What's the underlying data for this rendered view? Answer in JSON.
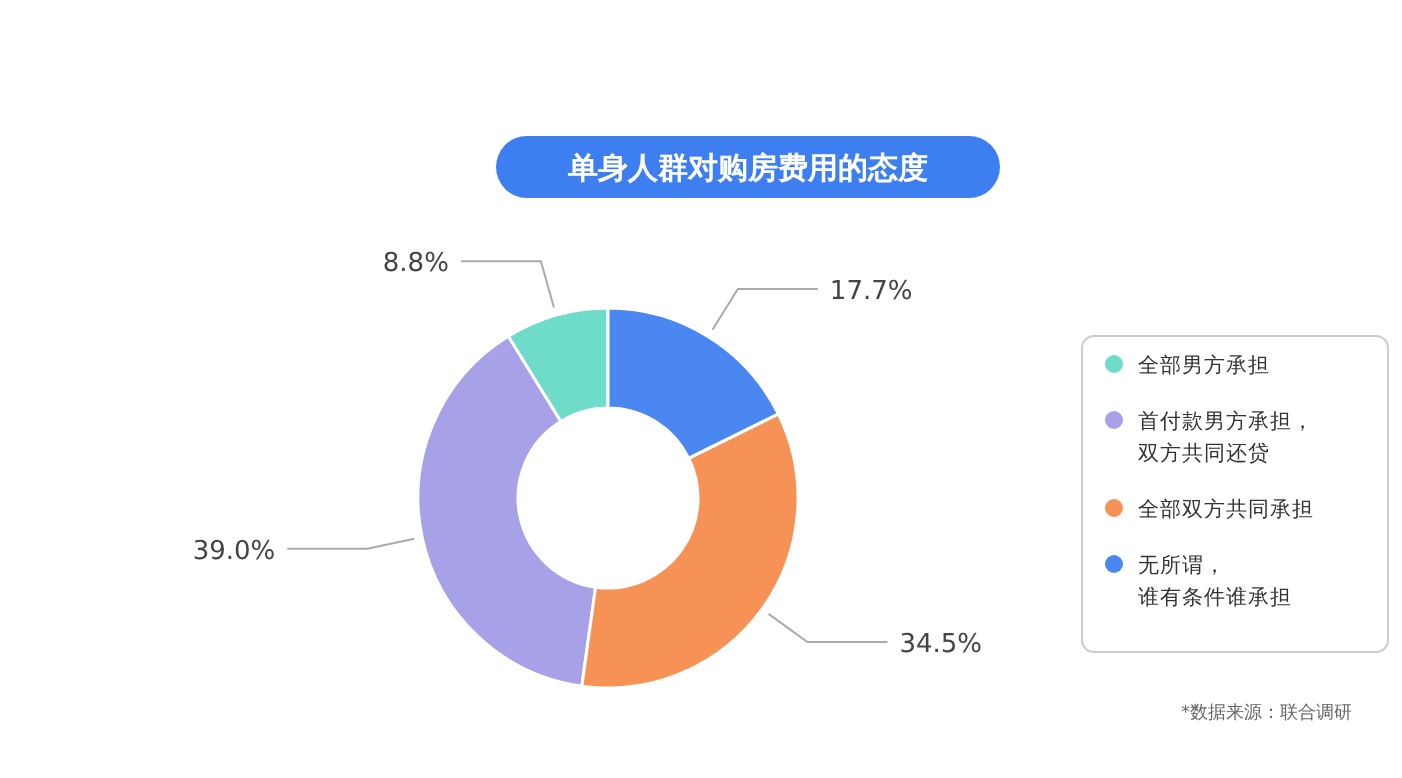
{
  "chart_data": {
    "type": "donut",
    "title": "单身人群对购房费用的态度",
    "categories": [
      "全部男方承担",
      "首付款男方承担，双方共同还贷",
      "全部双方共同承担",
      "无所谓，谁有条件谁承担"
    ],
    "values": [
      8.8,
      39.0,
      34.5,
      17.7
    ],
    "value_labels": [
      "8.8%",
      "39.0%",
      "34.5%",
      "17.7%"
    ],
    "colors": [
      "#6edcc9",
      "#a7a2e8",
      "#f79257",
      "#4a87f0"
    ],
    "legend": "right",
    "annotations": [
      "*数据来源：联合调研"
    ]
  }
}
